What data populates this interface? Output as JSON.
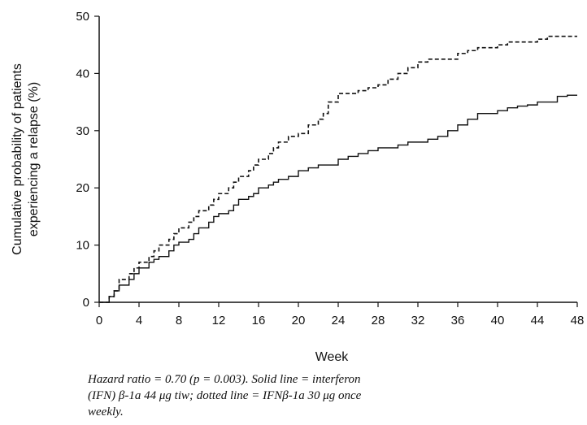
{
  "chart_data": {
    "type": "line",
    "title": "",
    "xlabel": "Week",
    "ylabel": [
      "Cumulative probability of patients",
      "experiencing a relapse (%)"
    ],
    "xlim": [
      0,
      48
    ],
    "ylim": [
      0,
      50
    ],
    "x_ticks": [
      0,
      4,
      8,
      12,
      16,
      20,
      24,
      28,
      32,
      36,
      40,
      44,
      48
    ],
    "y_ticks": [
      0,
      10,
      20,
      30,
      40,
      50
    ],
    "grid": false,
    "series": [
      {
        "style": "solid",
        "step": true,
        "x": [
          0,
          1,
          1.5,
          2,
          3,
          3.5,
          4,
          5,
          5.5,
          6,
          7,
          7.5,
          8,
          9,
          9.5,
          10,
          11,
          11.5,
          12,
          13,
          13.5,
          14,
          15,
          15.5,
          16,
          17,
          17.5,
          18,
          19,
          20,
          21,
          22,
          24,
          25,
          26,
          27,
          28,
          30,
          31,
          33,
          34,
          35,
          36,
          37,
          38,
          40,
          41,
          42,
          43,
          44,
          46,
          47,
          48
        ],
        "y": [
          0,
          1,
          2,
          3,
          4,
          5,
          6,
          7,
          7.5,
          8,
          9,
          10,
          10.5,
          11,
          12,
          13,
          14,
          15,
          15.5,
          16,
          17,
          18,
          18.5,
          19,
          20,
          20.5,
          21,
          21.5,
          22,
          23,
          23.5,
          24,
          25,
          25.5,
          26,
          26.5,
          27,
          27.5,
          28,
          28.5,
          29,
          30,
          31,
          32,
          33,
          33.5,
          34,
          34.3,
          34.5,
          35,
          36,
          36.2,
          36.2
        ]
      },
      {
        "style": "dashed",
        "step": true,
        "x": [
          0,
          1,
          1.5,
          2,
          3,
          3.5,
          4,
          5,
          5.5,
          6,
          7,
          7.5,
          8,
          9,
          9.5,
          10,
          11,
          11.5,
          12,
          13,
          13.5,
          14,
          15,
          15.5,
          16,
          17,
          17.5,
          18,
          19,
          20,
          21,
          22,
          22.5,
          23,
          24,
          26,
          27,
          28,
          29,
          30,
          31,
          32,
          33,
          36,
          37,
          38,
          40,
          41,
          44,
          45,
          47,
          48
        ],
        "y": [
          0,
          1,
          2,
          4,
          5,
          6,
          7,
          8,
          9,
          10,
          11,
          12,
          13,
          14,
          15,
          16,
          17,
          18,
          19,
          20,
          21,
          22,
          23,
          24,
          25,
          26,
          27,
          28,
          29,
          29.5,
          31,
          32,
          33,
          35,
          36.5,
          37,
          37.5,
          38,
          39,
          40,
          41,
          42,
          42.5,
          43.5,
          44,
          44.5,
          45,
          45.5,
          46,
          46.5,
          46.5,
          46.5
        ]
      }
    ],
    "annotation": [
      "Hazard ratio = 0.70 (p = 0.003). Solid line = interferon",
      "(IFN) β-1a 44 μg tiw; dotted line = IFNβ-1a 30 μg once",
      "weekly."
    ]
  }
}
